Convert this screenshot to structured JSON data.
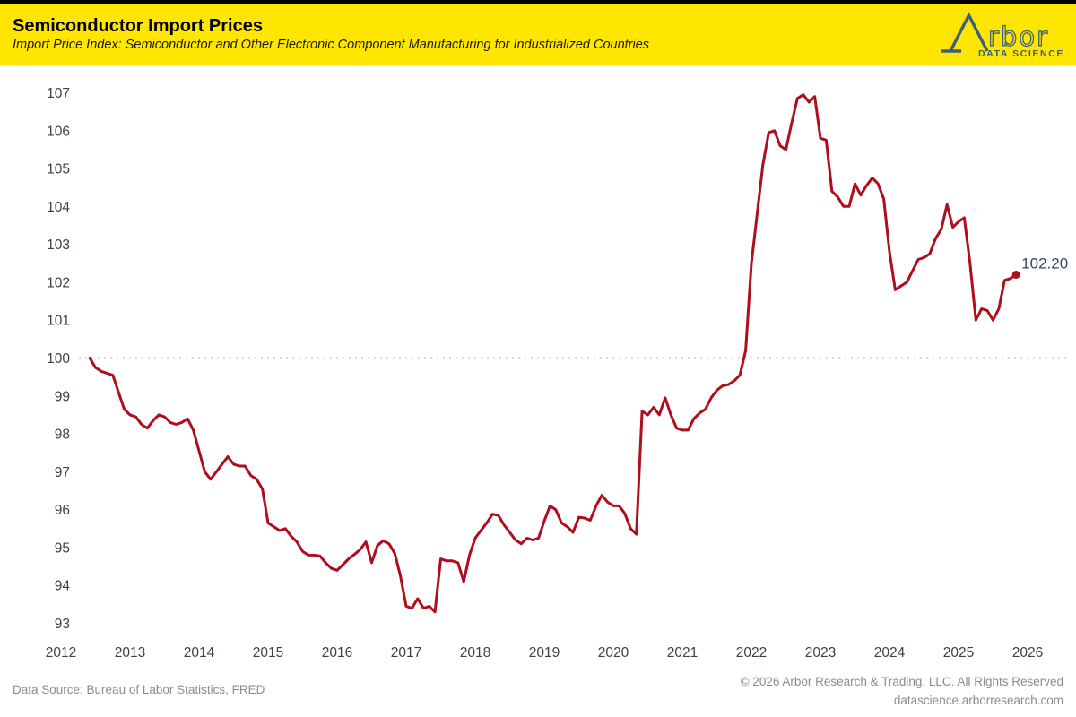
{
  "header": {
    "title": "Semiconductor Import Prices",
    "subtitle": "Import Price Index: Semiconductor and Other Electronic Component Manufacturing for Industrialized Countries",
    "background_color": "#FFE600",
    "logo": {
      "brand": "rbor",
      "tagline": "DATA SCIENCE",
      "color": "#3D5F7E"
    }
  },
  "footer": {
    "source": "Data Source: Bureau of Labor Statistics, FRED",
    "copyright": "© 2026 Arbor Research & Trading, LLC. All Rights Reserved",
    "website": "datascience.arborresearch.com"
  },
  "chart_data": {
    "type": "line",
    "title": "Semiconductor Import Prices",
    "frequency": "monthly",
    "start_year": 2012,
    "start_month": 6,
    "values": [
      100.0,
      99.75,
      99.65,
      99.6,
      99.55,
      99.1,
      98.65,
      98.5,
      98.45,
      98.25,
      98.15,
      98.35,
      98.5,
      98.45,
      98.3,
      98.25,
      98.3,
      98.4,
      98.1,
      97.55,
      97.0,
      96.8,
      97.0,
      97.2,
      97.4,
      97.2,
      97.15,
      97.15,
      96.9,
      96.8,
      96.55,
      95.65,
      95.55,
      95.45,
      95.5,
      95.3,
      95.15,
      94.9,
      94.8,
      94.8,
      94.78,
      94.6,
      94.45,
      94.4,
      94.55,
      94.7,
      94.82,
      94.95,
      95.15,
      94.6,
      95.05,
      95.18,
      95.1,
      94.85,
      94.25,
      93.45,
      93.4,
      93.65,
      93.4,
      93.45,
      93.3,
      94.7,
      94.65,
      94.65,
      94.6,
      94.1,
      94.8,
      95.25,
      95.45,
      95.65,
      95.88,
      95.85,
      95.6,
      95.4,
      95.2,
      95.1,
      95.25,
      95.2,
      95.25,
      95.7,
      96.1,
      96.0,
      95.65,
      95.55,
      95.4,
      95.8,
      95.78,
      95.72,
      96.1,
      96.38,
      96.2,
      96.1,
      96.1,
      95.9,
      95.5,
      95.35,
      98.6,
      98.5,
      98.7,
      98.5,
      98.95,
      98.5,
      98.15,
      98.1,
      98.1,
      98.4,
      98.55,
      98.65,
      98.95,
      99.15,
      99.27,
      99.3,
      99.4,
      99.55,
      100.2,
      102.5,
      103.8,
      105.1,
      105.95,
      106.0,
      105.6,
      105.5,
      106.2,
      106.85,
      106.95,
      106.75,
      106.9,
      105.8,
      105.75,
      104.4,
      104.25,
      104.0,
      104.0,
      104.6,
      104.3,
      104.55,
      104.75,
      104.6,
      104.2,
      102.8,
      101.8,
      101.9,
      102.0,
      102.3,
      102.6,
      102.65,
      102.75,
      103.15,
      103.4,
      104.05,
      103.45,
      103.6,
      103.7,
      102.5,
      101.0,
      101.3,
      101.25,
      101.0,
      101.3,
      102.05,
      102.1,
      102.2
    ],
    "end_label": "102.20",
    "end_label_color": "#2E4A6B",
    "series_color": "#AE0E1E",
    "axis_color": "#3A4149",
    "yticks": [
      93,
      94,
      95,
      96,
      97,
      98,
      99,
      100,
      101,
      102,
      103,
      104,
      105,
      106,
      107
    ],
    "xticks": [
      2012,
      2013,
      2014,
      2015,
      2016,
      2017,
      2018,
      2019,
      2020,
      2021,
      2022,
      2023,
      2024,
      2025,
      2026
    ],
    "ylim": [
      93,
      107
    ],
    "grid": "off",
    "reference_line": {
      "value": 100,
      "style": "dotted",
      "color": "#BBBBBB"
    },
    "xlabel": "",
    "ylabel": ""
  }
}
